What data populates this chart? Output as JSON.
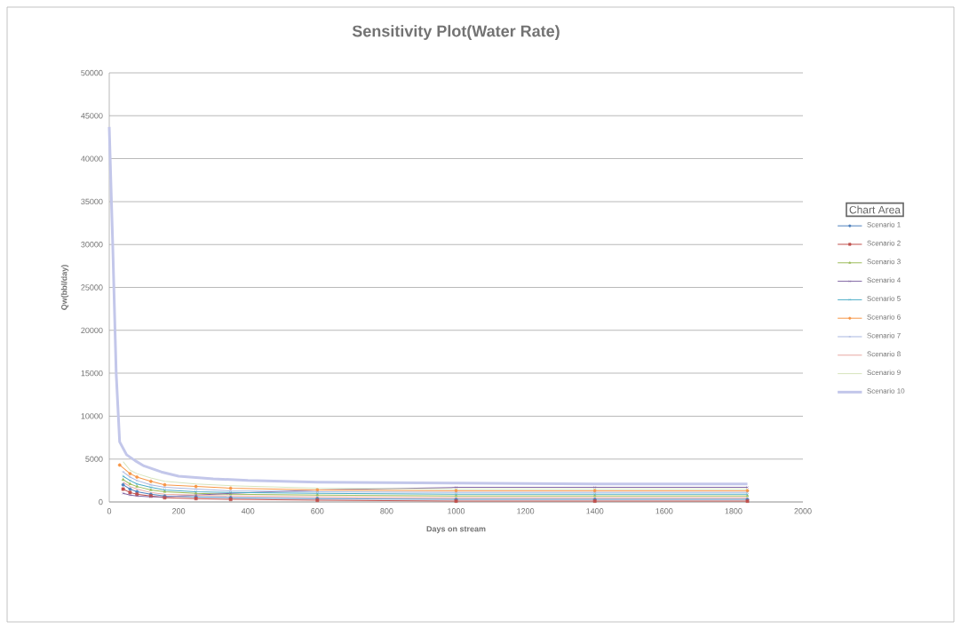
{
  "chart_data": {
    "type": "line",
    "title": "Sensitivity Plot(Water Rate)",
    "xlabel": "Days on stream",
    "ylabel": "Qw(bbl/day)",
    "xlim": [
      0,
      2000
    ],
    "xticks": [
      0,
      200,
      400,
      600,
      800,
      1000,
      1200,
      1400,
      1600,
      1800,
      2000
    ],
    "ylim": [
      0,
      50000
    ],
    "yticks": [
      0,
      5000,
      10000,
      15000,
      20000,
      25000,
      30000,
      35000,
      40000,
      45000,
      50000
    ],
    "grid": "y",
    "legend": "right",
    "annotations": [
      "Chart Area"
    ],
    "series": [
      {
        "name": "Scenario 1",
        "color": "#4f81bd",
        "marker": "circle",
        "x": [
          40,
          60,
          80,
          120,
          160,
          250,
          350,
          600,
          1000,
          1400,
          1840
        ],
        "values": [
          2000,
          1500,
          1200,
          900,
          700,
          600,
          500,
          400,
          300,
          300,
          300
        ]
      },
      {
        "name": "Scenario 2",
        "color": "#c0504d",
        "marker": "square",
        "x": [
          40,
          60,
          80,
          120,
          160,
          250,
          350,
          600,
          1000,
          1400,
          1840
        ],
        "values": [
          1500,
          1100,
          900,
          700,
          500,
          400,
          300,
          200,
          100,
          100,
          100
        ]
      },
      {
        "name": "Scenario 3",
        "color": "#9bbb59",
        "marker": "triangle",
        "x": [
          40,
          60,
          80,
          120,
          160,
          250,
          350,
          600,
          1000,
          1400,
          1840
        ],
        "values": [
          2600,
          2100,
          1800,
          1400,
          1200,
          1000,
          900,
          800,
          700,
          700,
          700
        ]
      },
      {
        "name": "Scenario 4",
        "color": "#8064a2",
        "marker": "cross",
        "x": [
          40,
          60,
          80,
          120,
          160,
          250,
          350,
          600,
          1000,
          1400,
          1840
        ],
        "values": [
          1000,
          800,
          700,
          600,
          600,
          800,
          1000,
          1400,
          1700,
          1700,
          1700
        ]
      },
      {
        "name": "Scenario 5",
        "color": "#4bacc6",
        "marker": "cross",
        "x": [
          40,
          60,
          80,
          120,
          160,
          250,
          350,
          600,
          1000,
          1400,
          1840
        ],
        "values": [
          3000,
          2500,
          2100,
          1700,
          1400,
          1200,
          1100,
          1000,
          900,
          900,
          900
        ]
      },
      {
        "name": "Scenario 6",
        "color": "#f79646",
        "marker": "circle",
        "x": [
          30,
          60,
          80,
          120,
          160,
          250,
          350,
          600,
          1000,
          1400,
          1840
        ],
        "values": [
          4300,
          3300,
          2900,
          2400,
          2000,
          1800,
          1600,
          1400,
          1300,
          1300,
          1300
        ]
      },
      {
        "name": "Scenario 7",
        "color": "#a9b7e0",
        "marker": "cross",
        "x": [
          40,
          60,
          80,
          120,
          160,
          250,
          350,
          600,
          1000,
          1400,
          1840
        ],
        "values": [
          3500,
          2900,
          2500,
          2000,
          1700,
          1500,
          1300,
          1200,
          1100,
          1100,
          1100
        ]
      },
      {
        "name": "Scenario 8",
        "color": "#e8a8a0",
        "x": [
          40,
          60,
          80,
          120,
          160,
          250,
          350,
          600,
          1000,
          1400,
          1840
        ],
        "values": [
          2300,
          1800,
          1500,
          1100,
          900,
          800,
          700,
          600,
          500,
          500,
          500
        ]
      },
      {
        "name": "Scenario 9",
        "color": "#d7e4bd",
        "x": [
          40,
          60,
          80,
          120,
          160,
          250,
          350,
          600,
          1000,
          1400,
          1840
        ],
        "values": [
          4700,
          3700,
          3300,
          2800,
          2400,
          2100,
          1900,
          1600,
          1500,
          1500,
          1500
        ]
      },
      {
        "name": "Scenario 10",
        "color": "#c3c7ea",
        "x": [
          0,
          10,
          20,
          30,
          50,
          75,
          100,
          150,
          200,
          300,
          400,
          600,
          1000,
          1400,
          1840
        ],
        "values": [
          43700,
          30000,
          15000,
          7000,
          5500,
          4800,
          4200,
          3500,
          3000,
          2700,
          2500,
          2300,
          2200,
          2100,
          2100
        ]
      }
    ]
  }
}
